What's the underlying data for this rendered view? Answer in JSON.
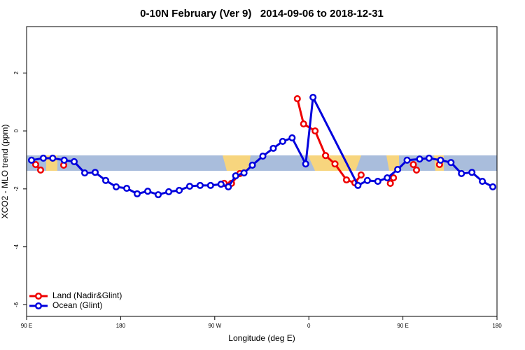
{
  "chart_data": {
    "type": "line",
    "title": "0-10N February (Ver 9)   2014-09-06 to 2018-12-31",
    "xlabel": "Longitude (deg E)",
    "ylabel": "XCO2 - MLO trend (ppm)",
    "xlim": [
      90,
      540
    ],
    "xticks": [
      {
        "value": 90,
        "label": "90 E"
      },
      {
        "value": 180,
        "label": "180"
      },
      {
        "value": 270,
        "label": "90 W"
      },
      {
        "value": 360,
        "label": "0"
      },
      {
        "value": 450,
        "label": "90 E"
      },
      {
        "value": 540,
        "label": "180"
      }
    ],
    "ylim": [
      -6.4,
      3.6
    ],
    "yticks": [
      -6,
      -4,
      -2,
      0,
      2
    ],
    "legend": "bottom-left",
    "series": [
      {
        "name": "Land (Nadir&Glint)",
        "color": "#ee0000",
        "x": [
          98.7,
          103.4,
          null,
          125.5,
          null,
          279,
          286,
          294,
          null,
          349,
          355,
          366,
          376,
          385,
          396,
          404,
          410,
          null,
          438,
          441,
          null,
          460,
          463,
          null,
          485
        ],
        "values": [
          -1.16,
          -1.35,
          null,
          -1.18,
          null,
          -1.81,
          -1.81,
          -1.47,
          null,
          1.11,
          0.24,
          0.0,
          -0.85,
          -1.14,
          -1.69,
          -1.79,
          -1.52,
          null,
          -1.81,
          -1.62,
          null,
          -1.16,
          -1.35,
          null,
          -1.16
        ]
      },
      {
        "name": "Ocean (Glint)",
        "color": "#0000dd",
        "x": [
          94.7,
          106,
          115,
          126,
          135.5,
          145.6,
          155.6,
          165.7,
          175.7,
          185.8,
          195.8,
          205.9,
          215.9,
          226,
          236,
          246,
          256,
          266,
          276,
          283,
          290,
          298,
          306,
          316,
          326,
          335,
          344,
          357,
          364,
          407,
          416,
          426,
          435,
          445,
          454,
          466,
          475,
          486,
          496,
          506,
          516,
          526,
          536
        ],
        "values": [
          -1.01,
          -0.94,
          -0.94,
          -1.01,
          -1.06,
          -1.45,
          -1.43,
          -1.71,
          -1.93,
          -1.98,
          -2.17,
          -2.08,
          -2.2,
          -2.1,
          -2.05,
          -1.91,
          -1.88,
          -1.88,
          -1.84,
          -1.93,
          -1.55,
          -1.45,
          -1.18,
          -0.87,
          -0.6,
          -0.36,
          -0.24,
          -1.14,
          1.16,
          -1.88,
          -1.71,
          -1.74,
          -1.62,
          -1.33,
          -1.01,
          -0.97,
          -0.94,
          -1.01,
          -1.09,
          -1.47,
          -1.43,
          -1.74,
          -1.93
        ]
      }
    ]
  }
}
